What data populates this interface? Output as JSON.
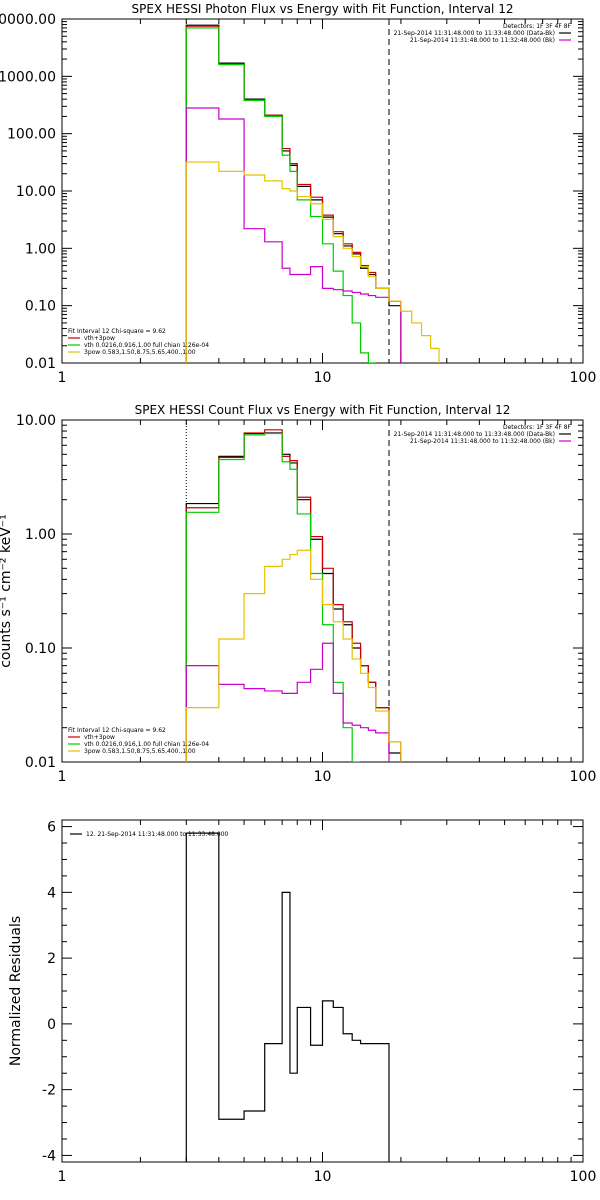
{
  "chart_data": [
    {
      "type": "line",
      "title": "SPEX HESSI Photon Flux vs Energy with Fit Function, Interval 12",
      "xscale": "log",
      "yscale": "log",
      "xlim": [
        1,
        100
      ],
      "ylim": [
        0.01,
        10000
      ],
      "xticks": [
        1,
        10,
        100
      ],
      "xtick_labels": [
        "1",
        "10",
        "100"
      ],
      "yticks": [
        0.01,
        0.1,
        1,
        10,
        100,
        1000,
        10000
      ],
      "ytick_labels": [
        "0.01",
        "0.10",
        "1.00",
        "10.00",
        "100.00",
        "1000.00",
        "10000.00"
      ],
      "legend_top": {
        "header": "Detectors: 1F 3F 4F 8F",
        "entries": [
          {
            "text": "21-Sep-2014 11:31:48.000 to 11:33:48.000 (Data-Bk)",
            "color": "#000000"
          },
          {
            "text": "21-Sep-2014 11:31:48.000 to 11:32:48.000 (Bk)",
            "color": "#cc00cc"
          }
        ]
      },
      "legend_bottom": {
        "header": "Fit Interval 12   Chi-square = 9.62",
        "entries": [
          {
            "text": "vth+3pow",
            "color": "#cc0000"
          },
          {
            "text": "vth 0.0216,0.916,1.00  full chian 1.26e-04",
            "color": "#00cc00"
          },
          {
            "text": "3pow 0.583,1.50,8.75,5.65,400.,1.00",
            "color": "#e6c200"
          }
        ]
      },
      "vlines": [
        {
          "x": 3,
          "style": "dotted"
        },
        {
          "x": 18,
          "style": "dashed"
        }
      ],
      "bin_edges": [
        3,
        4,
        5,
        6,
        7,
        7.5,
        8,
        9,
        10,
        11,
        12,
        13,
        14,
        15,
        16,
        18,
        20,
        22,
        24,
        26,
        28
      ],
      "series": [
        {
          "color": "#000000",
          "values": [
            7800,
            1700,
            400,
            210,
            50,
            28,
            12,
            7,
            3.5,
            1.8,
            1.1,
            0.8,
            0.45,
            0.35,
            0.2,
            0.1
          ]
        },
        {
          "color": "#cc0000",
          "values": [
            7500,
            1650,
            390,
            210,
            55,
            30,
            13,
            7.8,
            3.8,
            1.95,
            1.2,
            0.85,
            0.5,
            0.38,
            0.2,
            0.12
          ]
        },
        {
          "color": "#00cc00",
          "values": [
            7000,
            1600,
            380,
            200,
            42,
            22,
            7,
            3.6,
            1.2,
            0.4,
            0.15,
            0.05,
            0.015,
            0.008
          ]
        },
        {
          "color": "#cc00cc",
          "values": [
            280,
            180,
            2.2,
            1.3,
            0.45,
            0.35,
            0.35,
            0.48,
            0.2,
            0.19,
            0.18,
            0.17,
            0.16,
            0.15,
            0.14,
            0.12
          ]
        },
        {
          "color": "#e6c200",
          "values": [
            32,
            22,
            19,
            15,
            11,
            10,
            8,
            6,
            3.2,
            1.6,
            1.0,
            0.72,
            0.48,
            0.32,
            0.2,
            0.12,
            0.08,
            0.05,
            0.03,
            0.018
          ]
        }
      ]
    },
    {
      "type": "line",
      "title": "SPEX HESSI Count Flux vs Energy with Fit Function, Interval 12",
      "ylabel": "counts s⁻¹ cm⁻² keV⁻¹",
      "xscale": "log",
      "yscale": "log",
      "xlim": [
        1,
        100
      ],
      "ylim": [
        0.01,
        10
      ],
      "xticks": [
        1,
        10,
        100
      ],
      "xtick_labels": [
        "1",
        "10",
        "100"
      ],
      "yticks": [
        0.01,
        0.1,
        1,
        10
      ],
      "ytick_labels": [
        "0.01",
        "0.10",
        "1.00",
        "10.00"
      ],
      "legend_top": {
        "header": "Detectors: 1F 3F 4F 8F",
        "entries": [
          {
            "text": "21-Sep-2014 11:31:48.000 to 11:33:48.000 (Data-Bk)",
            "color": "#000000"
          },
          {
            "text": "21-Sep-2014 11:31:48.000 to 11:32:48.000 (Bk)",
            "color": "#cc00cc"
          }
        ]
      },
      "legend_bottom": {
        "header": "Fit Interval 12   Chi-square = 9.62",
        "entries": [
          {
            "text": "vth+3pow",
            "color": "#cc0000"
          },
          {
            "text": "vth 0.0216,0.916,1.00  full chian 1.26e-04",
            "color": "#00cc00"
          },
          {
            "text": "3pow 0.583,1.50,8.75,5.65,400.,1.00",
            "color": "#e6c200"
          }
        ]
      },
      "vlines": [
        {
          "x": 3,
          "style": "dotted"
        },
        {
          "x": 18,
          "style": "dashed"
        }
      ],
      "bin_edges": [
        3,
        4,
        5,
        6,
        7,
        7.5,
        8,
        9,
        10,
        11,
        12,
        13,
        14,
        15,
        16,
        18,
        20
      ],
      "series": [
        {
          "color": "#000000",
          "values": [
            1.85,
            4.8,
            7.6,
            7.7,
            5.0,
            4.2,
            2.0,
            0.9,
            0.45,
            0.22,
            0.16,
            0.1,
            0.07,
            0.05,
            0.03,
            0.012
          ]
        },
        {
          "color": "#cc0000",
          "values": [
            1.7,
            4.7,
            7.7,
            8.2,
            4.8,
            4.4,
            2.1,
            0.95,
            0.5,
            0.24,
            0.17,
            0.11,
            0.07,
            0.05,
            0.03,
            0.015
          ]
        },
        {
          "color": "#00cc00",
          "values": [
            1.55,
            4.5,
            7.4,
            7.6,
            4.3,
            3.7,
            1.5,
            0.45,
            0.16,
            0.05,
            0.02,
            0.008
          ]
        },
        {
          "color": "#cc00cc",
          "values": [
            0.07,
            0.048,
            0.044,
            0.042,
            0.04,
            0.04,
            0.05,
            0.065,
            0.11,
            0.04,
            0.022,
            0.021,
            0.02,
            0.019,
            0.018
          ]
        },
        {
          "color": "#e6c200",
          "values": [
            0.03,
            0.12,
            0.3,
            0.52,
            0.6,
            0.66,
            0.72,
            0.4,
            0.24,
            0.17,
            0.12,
            0.08,
            0.06,
            0.045,
            0.028,
            0.015
          ]
        }
      ]
    },
    {
      "type": "line",
      "ylabel": "Normalized Residuals",
      "xscale": "log",
      "yscale": "linear",
      "xlim": [
        1,
        100
      ],
      "ylim": [
        -4.2,
        6.2
      ],
      "xticks": [
        1,
        10,
        100
      ],
      "xtick_labels": [
        "1",
        "10",
        "100"
      ],
      "yticks": [
        -4,
        -2,
        0,
        2,
        4,
        6
      ],
      "ytick_labels": [
        "-4",
        "-2",
        "0",
        "2",
        "4",
        "6"
      ],
      "legend_top": {
        "entries": [
          {
            "text": "12. 21-Sep-2014 11:31:48.000 to 11:33:48.000",
            "color": "#000000"
          }
        ]
      },
      "bin_edges": [
        3,
        4,
        5,
        6,
        7,
        7.5,
        8,
        9,
        10,
        11,
        12,
        13,
        14,
        15,
        16,
        18
      ],
      "series": [
        {
          "color": "#000000",
          "values": [
            5.8,
            -2.9,
            -2.65,
            -0.6,
            4.0,
            -1.5,
            0.5,
            -0.65,
            0.7,
            0.5,
            -0.3,
            -0.5,
            -0.6,
            -0.6,
            -0.6
          ]
        }
      ]
    }
  ]
}
